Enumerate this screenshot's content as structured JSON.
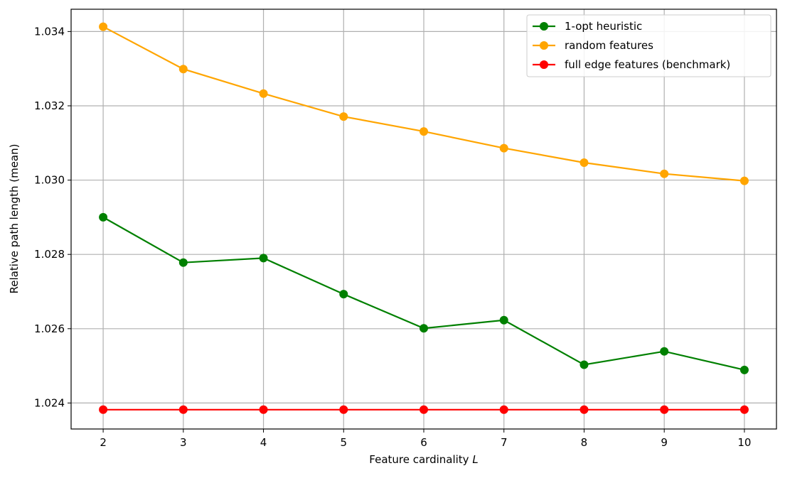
{
  "chart_data": {
    "type": "line",
    "xlabel": "Feature cardinality",
    "xlabel_italic": "L",
    "ylabel": "Relative path length (mean)",
    "x": [
      2,
      3,
      4,
      5,
      6,
      7,
      8,
      9,
      10
    ],
    "xlim": [
      1.6,
      10.4
    ],
    "ylim": [
      1.0233,
      1.0346
    ],
    "x_ticks": [
      "2",
      "3",
      "4",
      "5",
      "6",
      "7",
      "8",
      "9",
      "10"
    ],
    "y_ticks": [
      {
        "value": 1.024,
        "label": "1.024"
      },
      {
        "value": 1.026,
        "label": "1.026"
      },
      {
        "value": 1.028,
        "label": "1.028"
      },
      {
        "value": 1.03,
        "label": "1.030"
      },
      {
        "value": 1.032,
        "label": "1.032"
      },
      {
        "value": 1.034,
        "label": "1.034"
      }
    ],
    "grid": true,
    "legend_position": "top-right",
    "series": [
      {
        "name": "1-opt heuristic",
        "color": "#008000",
        "values": [
          1.029,
          1.02778,
          1.0279,
          1.02693,
          1.02601,
          1.02623,
          1.02503,
          1.02539,
          1.02489
        ]
      },
      {
        "name": "random features",
        "color": "#FFA500",
        "values": [
          1.03413,
          1.03299,
          1.03233,
          1.03171,
          1.03131,
          1.03086,
          1.03047,
          1.03017,
          1.02998
        ]
      },
      {
        "name": "full edge features (benchmark)",
        "color": "#FF0000",
        "values": [
          1.02382,
          1.02382,
          1.02382,
          1.02382,
          1.02382,
          1.02382,
          1.02382,
          1.02382,
          1.02382
        ]
      }
    ]
  }
}
